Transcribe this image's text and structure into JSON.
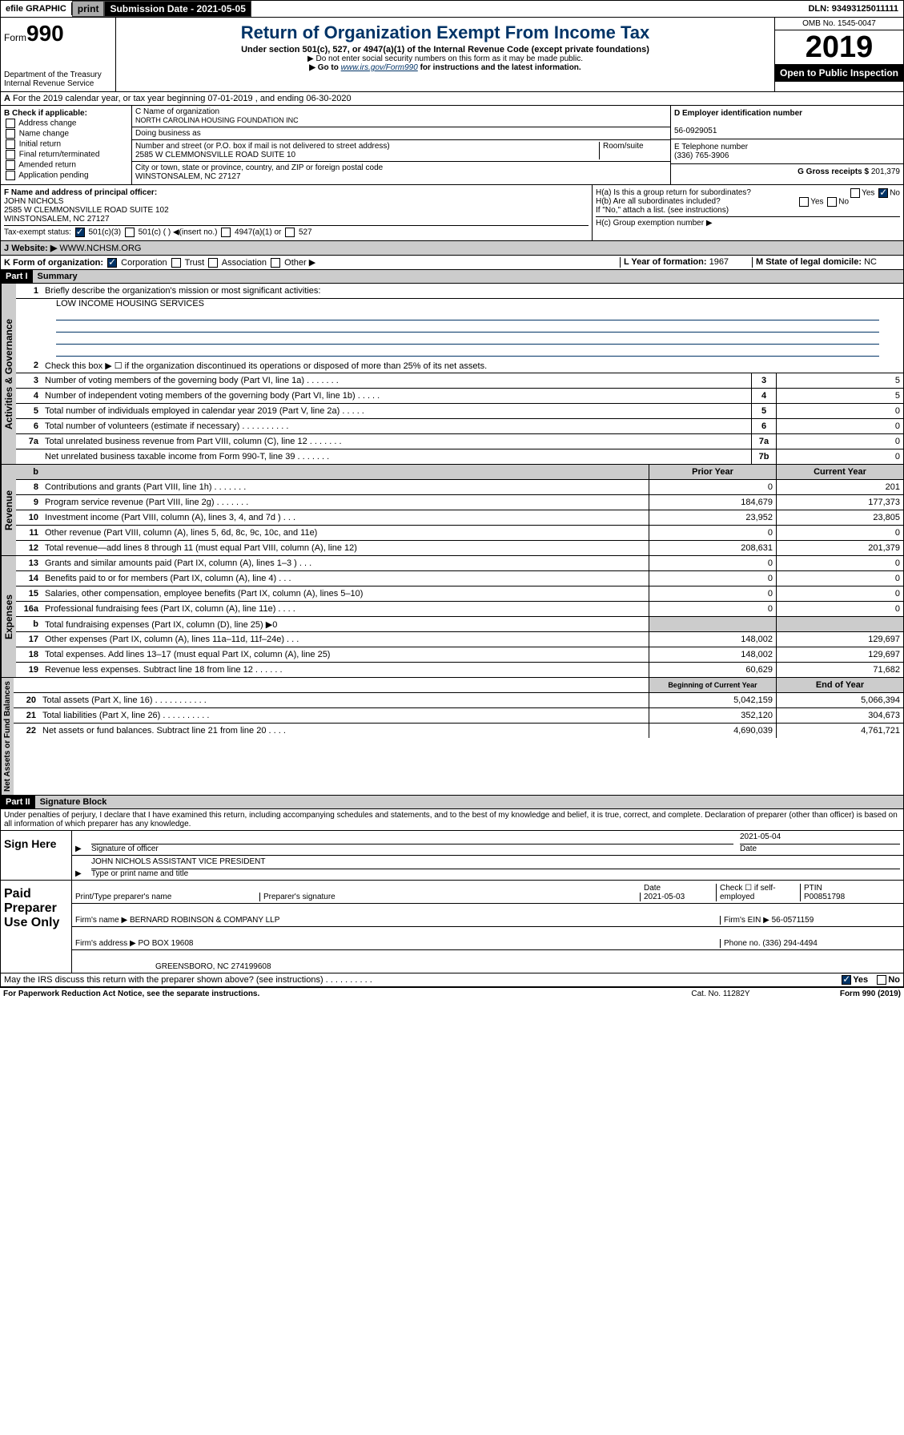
{
  "header": {
    "efile": "efile GRAPHIC",
    "print": "print",
    "sub_label": "Submission Date - 2021-05-05",
    "dln": "DLN: 93493125011111"
  },
  "title_block": {
    "form_label": "Form",
    "form_num": "990",
    "dept": "Department of the Treasury",
    "irs": "Internal Revenue Service",
    "title": "Return of Organization Exempt From Income Tax",
    "sub1": "Under section 501(c), 527, or 4947(a)(1) of the Internal Revenue Code (except private foundations)",
    "sub2": "▶ Do not enter social security numbers on this form as it may be made public.",
    "sub3_pre": "▶ Go to ",
    "sub3_link": "www.irs.gov/Form990",
    "sub3_post": " for instructions and the latest information.",
    "omb": "OMB No. 1545-0047",
    "year": "2019",
    "oti": "Open to Public Inspection"
  },
  "lineA": "For the 2019 calendar year, or tax year beginning 07-01-2019   , and ending 06-30-2020",
  "boxB": {
    "label": "B Check if applicable:",
    "items": [
      "Address change",
      "Name change",
      "Initial return",
      "Final return/terminated",
      "Amended return",
      "Application pending"
    ]
  },
  "boxC": {
    "name_label": "C Name of organization",
    "name": "NORTH CAROLINA HOUSING FOUNDATION INC",
    "dba_label": "Doing business as",
    "addr_label": "Number and street (or P.O. box if mail is not delivered to street address)",
    "room": "Room/suite",
    "addr": "2585 W CLEMMONSVILLE ROAD SUITE 10",
    "city_label": "City or town, state or province, country, and ZIP or foreign postal code",
    "city": "WINSTONSALEM, NC  27127"
  },
  "boxD": {
    "label": "D Employer identification number",
    "val": "56-0929051"
  },
  "boxE": {
    "label": "E Telephone number",
    "val": "(336) 765-3906"
  },
  "boxG": {
    "label": "G Gross receipts $",
    "val": "201,379"
  },
  "boxF": {
    "label": "F  Name and address of principal officer:",
    "name": "JOHN NICHOLS",
    "addr": "2585 W CLEMMONSVILLE ROAD SUITE 102",
    "city": "WINSTONSALEM, NC  27127"
  },
  "boxH": {
    "a": "H(a)  Is this a group return for subordinates?",
    "b": "H(b)  Are all subordinates included?",
    "b_note": "If \"No,\" attach a list. (see instructions)",
    "c": "H(c)  Group exemption number ▶"
  },
  "taxexempt": "Tax-exempt status:",
  "te_opts": [
    "501(c)(3)",
    "501(c) (  ) ◀(insert no.)",
    "4947(a)(1) or",
    "527"
  ],
  "boxJ": {
    "label": "J",
    "text": "Website: ▶",
    "val": "WWW.NCHSM.ORG"
  },
  "boxK": {
    "label": "K Form of organization:",
    "opts": [
      "Corporation",
      "Trust",
      "Association",
      "Other ▶"
    ]
  },
  "boxL": {
    "label": "L Year of formation:",
    "val": "1967"
  },
  "boxM": {
    "label": "M State of legal domicile:",
    "val": "NC"
  },
  "part1": {
    "hdr": "Part I",
    "title": "Summary",
    "q1": "Briefly describe the organization's mission or most significant activities:",
    "a1": "LOW INCOME HOUSING SERVICES",
    "q2": "Check this box ▶ ☐  if the organization discontinued its operations or disposed of more than 25% of its net assets."
  },
  "sections": {
    "gov": "Activities & Governance",
    "rev": "Revenue",
    "exp": "Expenses",
    "net": "Net Assets or Fund Balances"
  },
  "gov_lines": [
    {
      "n": "3",
      "t": "Number of voting members of the governing body (Part VI, line 1a)   .    .    .    .    .    .    .",
      "box": "3",
      "v": "5"
    },
    {
      "n": "4",
      "t": "Number of independent voting members of the governing body (Part VI, line 1b)   .    .    .    .    .",
      "box": "4",
      "v": "5"
    },
    {
      "n": "5",
      "t": "Total number of individuals employed in calendar year 2019 (Part V, line 2a)   .    .    .    .    .",
      "box": "5",
      "v": "0"
    },
    {
      "n": "6",
      "t": "Total number of volunteers (estimate if necessary)   .    .    .    .    .    .    .    .    .    .",
      "box": "6",
      "v": "0"
    },
    {
      "n": "7a",
      "t": "Total unrelated business revenue from Part VIII, column (C), line 12   .    .    .    .    .    .    .",
      "box": "7a",
      "v": "0"
    },
    {
      "n": "",
      "t": "Net unrelated business taxable income from Form 990-T, line 39   .    .    .    .    .    .    .",
      "box": "7b",
      "v": "0"
    }
  ],
  "two_col_hdr": {
    "py": "Prior Year",
    "cy": "Current Year"
  },
  "rev_lines": [
    {
      "n": "8",
      "t": "Contributions and grants (Part VIII, line 1h)   .    .    .    .    .    .    .",
      "py": "0",
      "cy": "201"
    },
    {
      "n": "9",
      "t": "Program service revenue (Part VIII, line 2g)   .    .    .    .    .    .    .",
      "py": "184,679",
      "cy": "177,373"
    },
    {
      "n": "10",
      "t": "Investment income (Part VIII, column (A), lines 3, 4, and 7d )   .    .    .",
      "py": "23,952",
      "cy": "23,805"
    },
    {
      "n": "11",
      "t": "Other revenue (Part VIII, column (A), lines 5, 6d, 8c, 9c, 10c, and 11e)",
      "py": "0",
      "cy": "0"
    },
    {
      "n": "12",
      "t": "Total revenue—add lines 8 through 11 (must equal Part VIII, column (A), line 12)",
      "py": "208,631",
      "cy": "201,379"
    }
  ],
  "exp_lines": [
    {
      "n": "13",
      "t": "Grants and similar amounts paid (Part IX, column (A), lines 1–3 )   .    .    .",
      "py": "0",
      "cy": "0"
    },
    {
      "n": "14",
      "t": "Benefits paid to or for members (Part IX, column (A), line 4)   .    .    .",
      "py": "0",
      "cy": "0"
    },
    {
      "n": "15",
      "t": "Salaries, other compensation, employee benefits (Part IX, column (A), lines 5–10)",
      "py": "0",
      "cy": "0"
    },
    {
      "n": "16a",
      "t": "Professional fundraising fees (Part IX, column (A), line 11e)   .    .    .    .",
      "py": "0",
      "cy": "0"
    },
    {
      "n": "b",
      "t": "Total fundraising expenses (Part IX, column (D), line 25) ▶0",
      "py": "",
      "cy": "",
      "shade": true
    },
    {
      "n": "17",
      "t": "Other expenses (Part IX, column (A), lines 11a–11d, 11f–24e)   .    .    .",
      "py": "148,002",
      "cy": "129,697"
    },
    {
      "n": "18",
      "t": "Total expenses. Add lines 13–17 (must equal Part IX, column (A), line 25)",
      "py": "148,002",
      "cy": "129,697"
    },
    {
      "n": "19",
      "t": "Revenue less expenses. Subtract line 18 from line 12   .    .    .    .    .    .",
      "py": "60,629",
      "cy": "71,682"
    }
  ],
  "net_hdr": {
    "py": "Beginning of Current Year",
    "cy": "End of Year"
  },
  "net_lines": [
    {
      "n": "20",
      "t": "Total assets (Part X, line 16)   .    .    .    .    .    .    .    .    .    .    .",
      "py": "5,042,159",
      "cy": "5,066,394"
    },
    {
      "n": "21",
      "t": "Total liabilities (Part X, line 26)   .    .    .    .    .    .    .    .    .    .",
      "py": "352,120",
      "cy": "304,673"
    },
    {
      "n": "22",
      "t": "Net assets or fund balances. Subtract line 21 from line 20   .    .    .    .",
      "py": "4,690,039",
      "cy": "4,761,721"
    }
  ],
  "part2": {
    "hdr": "Part II",
    "title": "Signature Block",
    "perjury": "Under penalties of perjury, I declare that I have examined this return, including accompanying schedules and statements, and to the best of my knowledge and belief, it is true, correct, and complete. Declaration of preparer (other than officer) is based on all information of which preparer has any knowledge."
  },
  "sign": {
    "left": "Sign Here",
    "sig_label": "Signature of officer",
    "date": "2021-05-04",
    "date_label": "Date",
    "name": "JOHN NICHOLS ASSISTANT VICE PRESIDENT",
    "name_label": "Type or print name and title"
  },
  "paid": {
    "left": "Paid Preparer Use Only",
    "h1": "Print/Type preparer's name",
    "h2": "Preparer's signature",
    "h3": "Date",
    "d3": "2021-05-03",
    "h4": "Check ☐ if self-employed",
    "h5": "PTIN",
    "d5": "P00851798",
    "firm_label": "Firm's name    ▶",
    "firm": "BERNARD ROBINSON & COMPANY LLP",
    "ein_label": "Firm's EIN ▶",
    "ein": "56-0571159",
    "addr_label": "Firm's address ▶",
    "addr1": "PO BOX 19608",
    "addr2": "GREENSBORO, NC  274199608",
    "phone_label": "Phone no.",
    "phone": "(336) 294-4494"
  },
  "discuss": "May the IRS discuss this return with the preparer shown above? (see instructions)   .    .    .    .    .    .    .    .    .    .",
  "footer": {
    "l": "For Paperwork Reduction Act Notice, see the separate instructions.",
    "c": "Cat. No. 11282Y",
    "r": "Form 990 (2019)"
  },
  "yes": "Yes",
  "no": "No"
}
